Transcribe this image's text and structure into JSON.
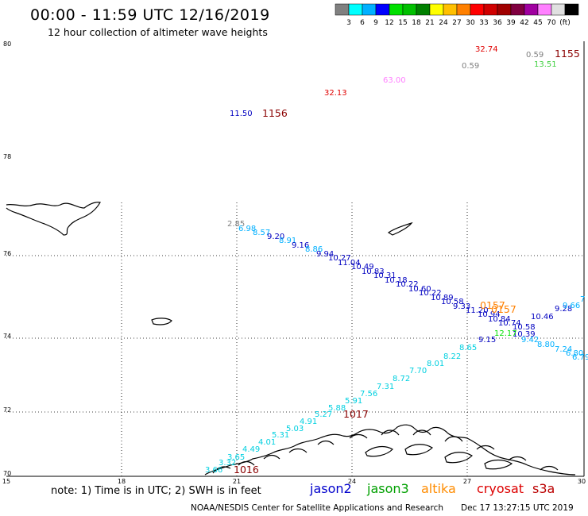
{
  "header": {
    "title": "00:00 - 11:59 UTC 12/16/2019",
    "subtitle": "12 hour collection of altimeter wave heights"
  },
  "color_scale": {
    "colors": [
      "#808080",
      "#00ffff",
      "#00b0ff",
      "#0000ff",
      "#00e000",
      "#00c000",
      "#008000",
      "#ffff00",
      "#ffc000",
      "#ff8000",
      "#ff0000",
      "#d00000",
      "#a00000",
      "#800040",
      "#a000a0",
      "#ff80ff",
      "#e0e0e0",
      "#000000"
    ],
    "labels": [
      "3",
      "6",
      "9",
      "12",
      "15",
      "18",
      "21",
      "24",
      "27",
      "30",
      "33",
      "36",
      "39",
      "42",
      "45",
      "70",
      "(ft)"
    ]
  },
  "axes": {
    "lat_labels": [
      "80",
      "78",
      "76",
      "74",
      "72",
      "70"
    ],
    "lon_labels": [
      "15",
      "18",
      "21",
      "24",
      "27",
      "30"
    ]
  },
  "observations": [
    {
      "text": "2.85",
      "color": "#808080",
      "kind": "small"
    },
    {
      "text": "6.98",
      "color": "#00b0ff",
      "kind": "small"
    },
    {
      "text": "8.57",
      "color": "#00b0ff",
      "kind": "small"
    },
    {
      "text": "9.20",
      "color": "#0000c0",
      "kind": "small"
    },
    {
      "text": "8.91",
      "color": "#00b0ff",
      "kind": "small"
    },
    {
      "text": "9.16",
      "color": "#0000c0",
      "kind": "small"
    },
    {
      "text": "8.86",
      "color": "#00b0ff",
      "kind": "small"
    },
    {
      "text": "9.94",
      "color": "#0000c0",
      "kind": "small"
    },
    {
      "text": "10.27",
      "color": "#0000c0",
      "kind": "small"
    },
    {
      "text": "11.04",
      "color": "#0000c0",
      "kind": "small"
    },
    {
      "text": "10.49",
      "color": "#0000c0",
      "kind": "small"
    },
    {
      "text": "10.83",
      "color": "#0000c0",
      "kind": "small"
    },
    {
      "text": "10.31",
      "color": "#0000c0",
      "kind": "small"
    },
    {
      "text": "10.18",
      "color": "#0000c0",
      "kind": "small"
    },
    {
      "text": "10.22",
      "color": "#0000c0",
      "kind": "small"
    },
    {
      "text": "10.60",
      "color": "#0000c0",
      "kind": "small"
    },
    {
      "text": "10.22",
      "color": "#0000c0",
      "kind": "small"
    },
    {
      "text": "10.89",
      "color": "#0000c0",
      "kind": "small"
    },
    {
      "text": "10.58",
      "color": "#0000c0",
      "kind": "small"
    },
    {
      "text": "9.33",
      "color": "#0000c0",
      "kind": "small"
    },
    {
      "text": "11.20",
      "color": "#0000c0",
      "kind": "small"
    },
    {
      "text": "10.94",
      "color": "#0000c0",
      "kind": "small"
    },
    {
      "text": "10.84",
      "color": "#0000c0",
      "kind": "small"
    },
    {
      "text": "10.74",
      "color": "#0000c0",
      "kind": "small"
    },
    {
      "text": "10.58",
      "color": "#0000c0",
      "kind": "small"
    },
    {
      "text": "10.46",
      "color": "#0000c0",
      "kind": "small"
    },
    {
      "text": "9.28",
      "color": "#0000c0",
      "kind": "small"
    },
    {
      "text": "9.66",
      "color": "#00b0ff",
      "kind": "small"
    },
    {
      "text": "7",
      "color": "#00b0ff",
      "kind": "small"
    },
    {
      "text": "10.39",
      "color": "#0000c0",
      "kind": "small"
    },
    {
      "text": "9.15",
      "color": "#0000c0",
      "kind": "small"
    },
    {
      "text": "12.17",
      "color": "#00e000",
      "kind": "small"
    },
    {
      "text": "9.42",
      "color": "#00b0ff",
      "kind": "small"
    },
    {
      "text": "8.80",
      "color": "#00b0ff",
      "kind": "small"
    },
    {
      "text": "7.24",
      "color": "#00b0ff",
      "kind": "small"
    },
    {
      "text": "6.80",
      "color": "#00b0ff",
      "kind": "small"
    },
    {
      "text": "6.79",
      "color": "#00b0ff",
      "kind": "small"
    },
    {
      "text": "8.65",
      "color": "#00d0e0",
      "kind": "small"
    },
    {
      "text": "8.22",
      "color": "#00d0e0",
      "kind": "small"
    },
    {
      "text": "8.01",
      "color": "#00d0e0",
      "kind": "small"
    },
    {
      "text": "7.70",
      "color": "#00d0e0",
      "kind": "small"
    },
    {
      "text": "8.72",
      "color": "#00d0e0",
      "kind": "small"
    },
    {
      "text": "7.31",
      "color": "#00d0e0",
      "kind": "small"
    },
    {
      "text": "7.56",
      "color": "#00d0e0",
      "kind": "small"
    },
    {
      "text": "5.91",
      "color": "#00d0e0",
      "kind": "small"
    },
    {
      "text": "5.88",
      "color": "#00d0e0",
      "kind": "small"
    },
    {
      "text": "5.27",
      "color": "#00d0e0",
      "kind": "small"
    },
    {
      "text": "4.91",
      "color": "#00d0e0",
      "kind": "small"
    },
    {
      "text": "5.03",
      "color": "#00d0e0",
      "kind": "small"
    },
    {
      "text": "5.31",
      "color": "#00d0e0",
      "kind": "small"
    },
    {
      "text": "4.01",
      "color": "#00d0e0",
      "kind": "small"
    },
    {
      "text": "4.49",
      "color": "#00d0e0",
      "kind": "small"
    },
    {
      "text": "3.65",
      "color": "#00d0e0",
      "kind": "small"
    },
    {
      "text": "3.32",
      "color": "#00d0e0",
      "kind": "small"
    },
    {
      "text": "3.66",
      "color": "#00d0e0",
      "kind": "small"
    },
    {
      "text": "11.50",
      "color": "#0000c0",
      "kind": "small"
    },
    {
      "text": "32.13",
      "color": "#e00000",
      "kind": "small"
    },
    {
      "text": "63.00",
      "color": "#ff80ff",
      "kind": "small"
    },
    {
      "text": "32.74",
      "color": "#e00000",
      "kind": "small"
    },
    {
      "text": "0.59",
      "color": "#808080",
      "kind": "small"
    },
    {
      "text": "0.59",
      "color": "#808080",
      "kind": "small"
    },
    {
      "text": "13.51",
      "color": "#40d040",
      "kind": "small"
    },
    {
      "text": "1156",
      "color": "#8b0000",
      "kind": "big"
    },
    {
      "text": "1155",
      "color": "#8b0000",
      "kind": "big"
    },
    {
      "text": "0157",
      "color": "#ff8000",
      "kind": "big"
    },
    {
      "text": "0157",
      "color": "#ff8000",
      "kind": "big"
    },
    {
      "text": "1017",
      "color": "#8b0000",
      "kind": "big"
    },
    {
      "text": "1016",
      "color": "#8b0000",
      "kind": "big"
    }
  ],
  "footer": {
    "note": "note: 1) Time is in UTC; 2) SWH is in feet",
    "satellites": [
      {
        "name": "jason2",
        "color": "#0000cc"
      },
      {
        "name": "jason3",
        "color": "#00a000"
      },
      {
        "name": "altika",
        "color": "#ff8c00"
      },
      {
        "name": "cryosat",
        "color": "#dd0000"
      },
      {
        "name": "s3a",
        "color": "#bb0000"
      }
    ],
    "credit": "NOAA/NESDIS Center for Satellite Applications and Research",
    "timestamp": "Dec 17 13:27:15 UTC 2019"
  }
}
